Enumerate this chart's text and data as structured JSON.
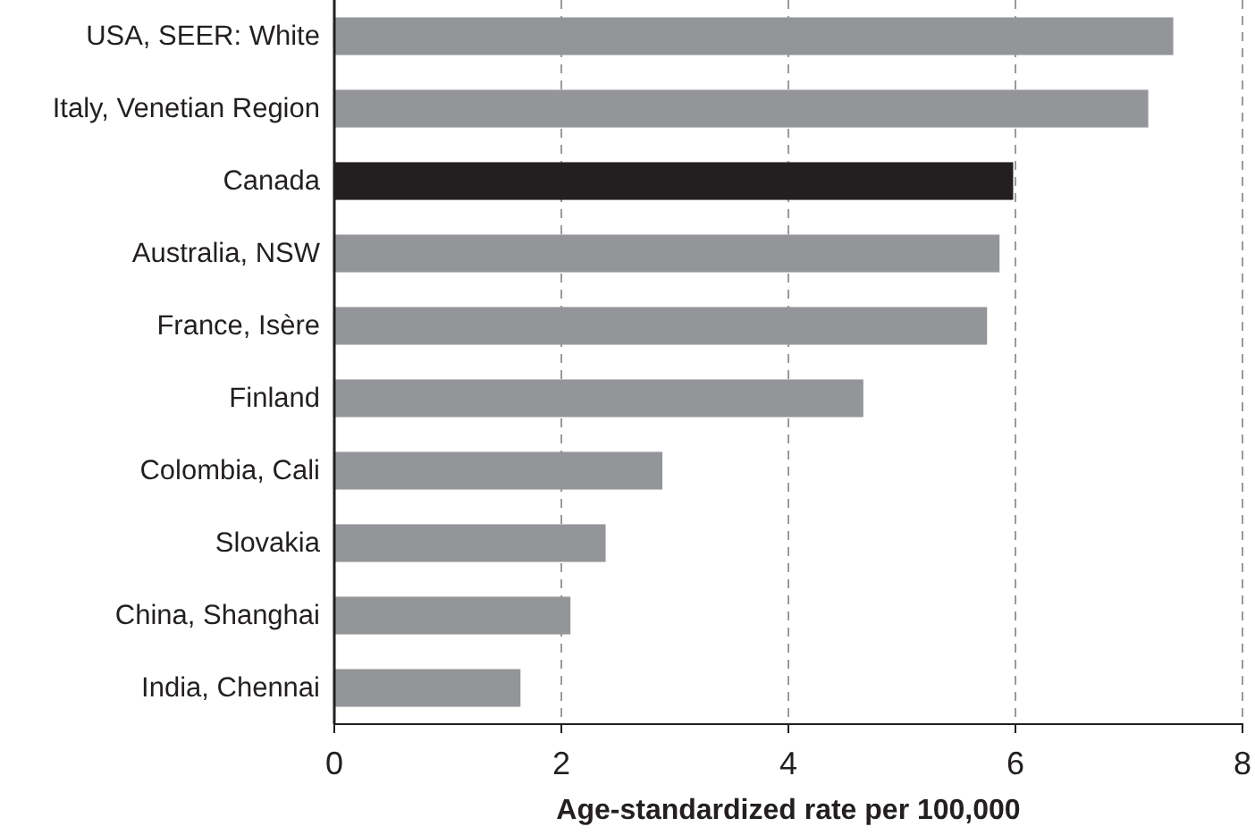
{
  "chart_data": {
    "type": "bar",
    "orientation": "horizontal",
    "xlabel": "Age-standardized rate per 100,000",
    "categories": [
      "USA, SEER: White",
      "Italy, Venetian Region",
      "Canada",
      "Australia, NSW",
      "France, Isère",
      "Finland",
      "Colombia, Cali",
      "Slovakia",
      "China, Shanghai",
      "India, Chennai"
    ],
    "values": [
      7.39,
      7.17,
      5.98,
      5.86,
      5.75,
      4.66,
      2.89,
      2.39,
      2.08,
      1.64
    ],
    "colors": [
      "#939598",
      "#939598",
      "#231f20",
      "#939598",
      "#939598",
      "#939598",
      "#939598",
      "#939598",
      "#939598",
      "#939598"
    ],
    "xlim": [
      0,
      8
    ],
    "xticks": [
      0,
      2,
      4,
      6,
      8
    ],
    "grid": "x"
  }
}
